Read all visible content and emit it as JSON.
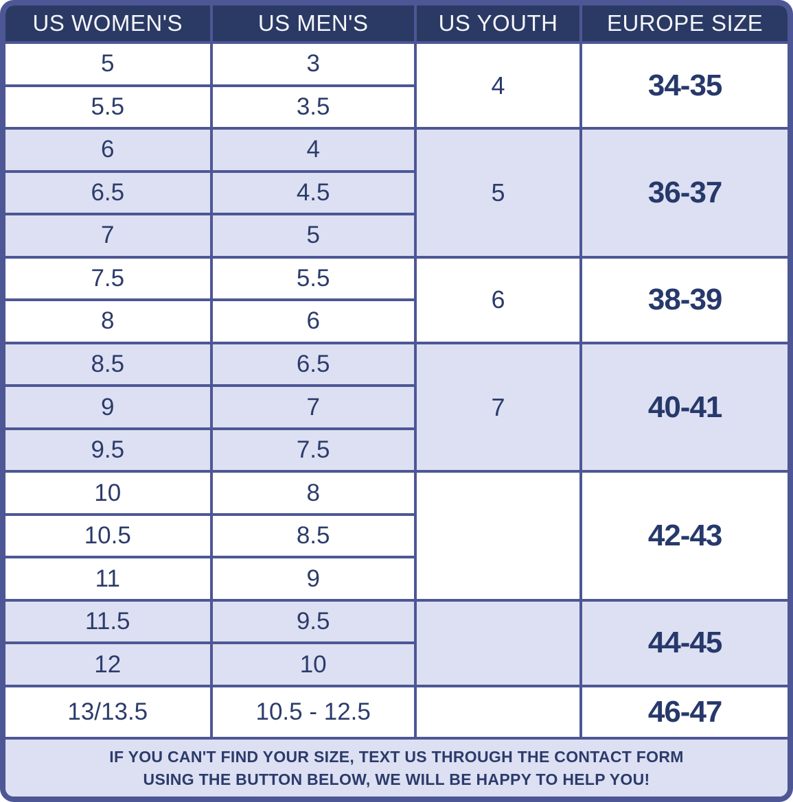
{
  "table": {
    "headers": [
      "US WOMEN'S",
      "US MEN'S",
      "US YOUTH",
      "EUROPE SIZE"
    ],
    "groups": [
      {
        "youth": "4",
        "europe": "34-35",
        "rows": [
          {
            "women": "5",
            "men": "3"
          },
          {
            "women": "5.5",
            "men": "3.5"
          }
        ]
      },
      {
        "youth": "5",
        "europe": "36-37",
        "rows": [
          {
            "women": "6",
            "men": "4"
          },
          {
            "women": "6.5",
            "men": "4.5"
          },
          {
            "women": "7",
            "men": "5"
          }
        ]
      },
      {
        "youth": "6",
        "europe": "38-39",
        "rows": [
          {
            "women": "7.5",
            "men": "5.5"
          },
          {
            "women": "8",
            "men": "6"
          }
        ]
      },
      {
        "youth": "7",
        "europe": "40-41",
        "rows": [
          {
            "women": "8.5",
            "men": "6.5"
          },
          {
            "women": "9",
            "men": "7"
          },
          {
            "women": "9.5",
            "men": "7.5"
          }
        ]
      },
      {
        "youth": "",
        "europe": "42-43",
        "rows": [
          {
            "women": "10",
            "men": "8"
          },
          {
            "women": "10.5",
            "men": "8.5"
          },
          {
            "women": "11",
            "men": "9"
          }
        ]
      },
      {
        "youth": "",
        "europe": "44-45",
        "rows": [
          {
            "women": "11.5",
            "men": "9.5"
          },
          {
            "women": "12",
            "men": "10"
          }
        ]
      },
      {
        "youth": "",
        "europe": "46-47",
        "rows": [
          {
            "women": "13/13.5",
            "men": "10.5 - 12.5"
          }
        ]
      }
    ]
  },
  "footer": {
    "line1": "IF YOU CAN'T FIND YOUR SIZE, TEXT US THROUGH THE CONTACT FORM",
    "line2": "USING THE BUTTON BELOW, WE WILL BE HAPPY TO HELP YOU!"
  },
  "colors": {
    "header_bg": "#2b3a64",
    "header_text": "#f5f6fa",
    "border": "#4d5795",
    "shaded_row_bg": "#dce0f2",
    "cell_text": "#2c3b6b",
    "europe_text": "#27396b",
    "footer_bg": "#dce0f2"
  },
  "chart_data": {
    "type": "table",
    "title": "Shoe size conversion chart",
    "columns": [
      "US WOMEN'S",
      "US MEN'S",
      "US YOUTH",
      "EUROPE SIZE"
    ],
    "rows": [
      [
        "5",
        "3",
        "4",
        "34-35"
      ],
      [
        "5.5",
        "3.5",
        "4",
        "34-35"
      ],
      [
        "6",
        "4",
        "5",
        "36-37"
      ],
      [
        "6.5",
        "4.5",
        "5",
        "36-37"
      ],
      [
        "7",
        "5",
        "5",
        "36-37"
      ],
      [
        "7.5",
        "5.5",
        "6",
        "38-39"
      ],
      [
        "8",
        "6",
        "6",
        "38-39"
      ],
      [
        "8.5",
        "6.5",
        "7",
        "40-41"
      ],
      [
        "9",
        "7",
        "7",
        "40-41"
      ],
      [
        "9.5",
        "7.5",
        "7",
        "40-41"
      ],
      [
        "10",
        "8",
        "",
        "42-43"
      ],
      [
        "10.5",
        "8.5",
        "",
        "42-43"
      ],
      [
        "11",
        "9",
        "",
        "42-43"
      ],
      [
        "11.5",
        "9.5",
        "",
        "44-45"
      ],
      [
        "12",
        "10",
        "",
        "44-45"
      ],
      [
        "13/13.5",
        "10.5 - 12.5",
        "",
        "46-47"
      ]
    ]
  }
}
